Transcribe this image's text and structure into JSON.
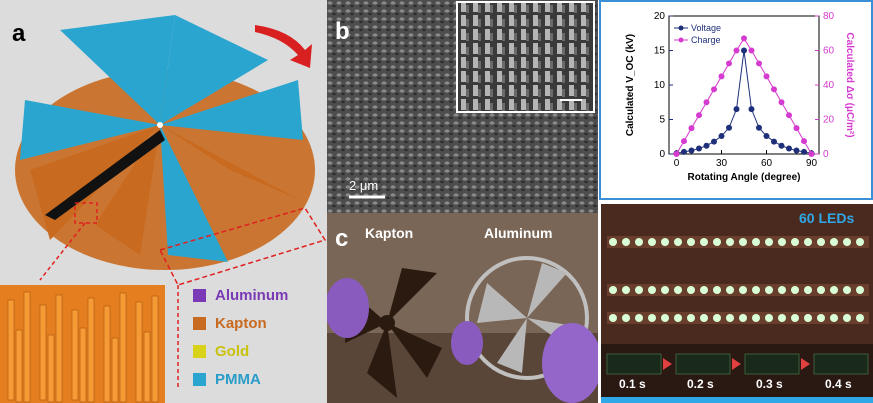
{
  "panel_a": {
    "label": "a",
    "legend": [
      {
        "name": "Aluminum",
        "color": "#7b3ab5"
      },
      {
        "name": "Kapton",
        "color": "#c86a1f"
      },
      {
        "name": "Gold",
        "color": "#d8d31a"
      },
      {
        "name": "PMMA",
        "color": "#2aa5cf"
      }
    ]
  },
  "panel_b": {
    "label": "b",
    "scale_bar": "2 μm"
  },
  "panel_c": {
    "label": "c",
    "left_caption": "Kapton",
    "right_caption": "Aluminum"
  },
  "panel_e": {
    "count_label": "60 LEDs",
    "time_labels": [
      "0.1 s",
      "0.2 s",
      "0.3 s",
      "0.4 s"
    ]
  },
  "chart_data": {
    "type": "line",
    "xlabel": "Rotating Angle (degree)",
    "ylabel_left": "Calculated V_OC (kV)",
    "ylabel_right": "Calculated Δσ (μC/m²)",
    "xlim": [
      -5,
      95
    ],
    "ylim_left": [
      0,
      20
    ],
    "ylim_right": [
      0,
      80
    ],
    "x_ticks": [
      "0",
      "30",
      "60",
      "90"
    ],
    "y_ticks_left": [
      "0",
      "5",
      "10",
      "15",
      "20"
    ],
    "y_ticks_right": [
      "0",
      "20",
      "40",
      "60",
      "80"
    ],
    "legend": [
      "Voltage",
      "Charge"
    ],
    "colors": {
      "Voltage": "#1f2f7a",
      "Charge": "#d63bd0"
    },
    "series": [
      {
        "name": "Voltage",
        "axis": "left",
        "x": [
          0,
          5,
          10,
          15,
          20,
          25,
          30,
          35,
          40,
          45,
          50,
          55,
          60,
          65,
          70,
          75,
          80,
          85,
          90
        ],
        "values": [
          0.1,
          0.3,
          0.5,
          0.8,
          1.2,
          1.8,
          2.6,
          3.8,
          6.5,
          15,
          6.5,
          3.8,
          2.6,
          1.8,
          1.2,
          0.8,
          0.5,
          0.3,
          0.1
        ]
      },
      {
        "name": "Charge",
        "axis": "right",
        "x": [
          0,
          5,
          10,
          15,
          20,
          25,
          30,
          35,
          40,
          45,
          50,
          55,
          60,
          65,
          70,
          75,
          80,
          85,
          90
        ],
        "values": [
          0,
          7.5,
          15,
          22.5,
          30,
          37.5,
          45,
          52.5,
          60,
          67,
          60,
          52.5,
          45,
          37.5,
          30,
          22.5,
          15,
          7.5,
          0
        ]
      }
    ]
  }
}
